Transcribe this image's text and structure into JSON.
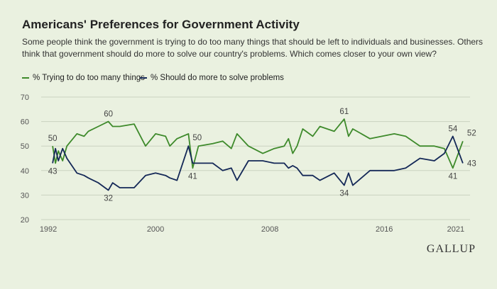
{
  "colors": {
    "background": "#eaf1e0",
    "series_too_many": "#3e8a2b",
    "series_do_more": "#142857",
    "grid": "#c9d2bf",
    "axis_text": "#555555",
    "label_text": "#444444"
  },
  "chart_data": {
    "type": "line",
    "title": "Americans' Preferences for Government Activity",
    "subtitle": "Some people think the government is trying to do too many things that should be left to individuals and businesses. Others think that government should do more to solve our country's problems. Which comes closer to your own view?",
    "xlabel": "",
    "ylabel": "",
    "xlim": [
      1992,
      2022
    ],
    "ylim": [
      20,
      70
    ],
    "yticks": [
      20,
      30,
      40,
      50,
      60,
      70
    ],
    "xticks": [
      {
        "value": 1992.5,
        "label": "1992"
      },
      {
        "value": 2000,
        "label": "2000"
      },
      {
        "value": 2008,
        "label": "2008"
      },
      {
        "value": 2016,
        "label": "2016"
      },
      {
        "value": 2021,
        "label": "2021"
      }
    ],
    "grid": true,
    "legend_position": "top-left",
    "series": [
      {
        "name": "% Trying to do too many things",
        "key": "too_many",
        "x": [
          1992.8,
          1993.0,
          1993.2,
          1993.5,
          1993.8,
          1994.5,
          1995.0,
          1995.3,
          1996.0,
          1996.7,
          1997.0,
          1997.5,
          1998.5,
          1999.3,
          2000.0,
          2000.7,
          2001.0,
          2001.5,
          2002.3,
          2002.6,
          2003.0,
          2004.0,
          2004.7,
          2005.3,
          2005.7,
          2006.5,
          2007.5,
          2008.3,
          2009.0,
          2009.3,
          2009.6,
          2009.9,
          2010.3,
          2011.0,
          2011.5,
          2012.5,
          2013.2,
          2013.5,
          2013.8,
          2015.0,
          2016.7,
          2017.5,
          2018.5,
          2019.5,
          2020.2,
          2020.8,
          2021.5
        ],
        "y": [
          50,
          43,
          48,
          44,
          50,
          55,
          54,
          56,
          58,
          60,
          58,
          58,
          59,
          50,
          55,
          54,
          50,
          53,
          55,
          41,
          50,
          51,
          52,
          49,
          55,
          50,
          47,
          49,
          50,
          53,
          47,
          50,
          57,
          54,
          58,
          56,
          61,
          54,
          57,
          53,
          55,
          54,
          50,
          50,
          49,
          41,
          52
        ]
      },
      {
        "name": "% Should do more to solve problems",
        "key": "do_more",
        "x": [
          1992.8,
          1993.0,
          1993.2,
          1993.5,
          1993.8,
          1994.5,
          1995.0,
          1995.3,
          1996.0,
          1996.7,
          1997.0,
          1997.5,
          1998.5,
          1999.3,
          2000.0,
          2000.7,
          2001.0,
          2001.5,
          2002.3,
          2002.6,
          2003.0,
          2004.0,
          2004.7,
          2005.3,
          2005.7,
          2006.5,
          2007.5,
          2008.3,
          2009.0,
          2009.3,
          2009.6,
          2009.9,
          2010.3,
          2011.0,
          2011.5,
          2012.5,
          2013.2,
          2013.5,
          2013.8,
          2015.0,
          2016.7,
          2017.5,
          2018.5,
          2019.5,
          2020.2,
          2020.8,
          2021.5
        ],
        "y": [
          43,
          49,
          44,
          49,
          45,
          39,
          38,
          37,
          35,
          32,
          35,
          33,
          33,
          38,
          39,
          38,
          37,
          36,
          50,
          43,
          43,
          43,
          40,
          41,
          36,
          44,
          44,
          43,
          43,
          41,
          42,
          41,
          38,
          38,
          36,
          39,
          34,
          39,
          34,
          40,
          40,
          41,
          45,
          44,
          47,
          54,
          43
        ]
      }
    ],
    "annotations": [
      {
        "series": "too_many",
        "x": 1992.8,
        "y": 50,
        "text": "50",
        "pos": "above"
      },
      {
        "series": "do_more",
        "x": 1992.8,
        "y": 43,
        "text": "43",
        "pos": "below"
      },
      {
        "series": "too_many",
        "x": 1996.7,
        "y": 60,
        "text": "60",
        "pos": "above"
      },
      {
        "series": "do_more",
        "x": 1996.7,
        "y": 32,
        "text": "32",
        "pos": "below"
      },
      {
        "series": "do_more",
        "x": 2002.3,
        "y": 50,
        "text": "50",
        "pos": "above-right"
      },
      {
        "series": "too_many",
        "x": 2002.6,
        "y": 41,
        "text": "41",
        "pos": "below"
      },
      {
        "series": "too_many",
        "x": 2013.2,
        "y": 61,
        "text": "61",
        "pos": "above"
      },
      {
        "series": "do_more",
        "x": 2013.2,
        "y": 34,
        "text": "34",
        "pos": "below"
      },
      {
        "series": "do_more",
        "x": 2020.8,
        "y": 54,
        "text": "54",
        "pos": "above"
      },
      {
        "series": "too_many",
        "x": 2020.8,
        "y": 41,
        "text": "41",
        "pos": "below"
      },
      {
        "series": "too_many",
        "x": 2021.5,
        "y": 52,
        "text": "52",
        "pos": "above-right"
      },
      {
        "series": "do_more",
        "x": 2021.5,
        "y": 43,
        "text": "43",
        "pos": "below-right"
      }
    ]
  },
  "legend": {
    "items": [
      {
        "label": "% Trying to do too many things",
        "color": "#3e8a2b"
      },
      {
        "label": "% Should do more to solve problems",
        "color": "#142857"
      }
    ]
  },
  "brand": "GALLUP"
}
